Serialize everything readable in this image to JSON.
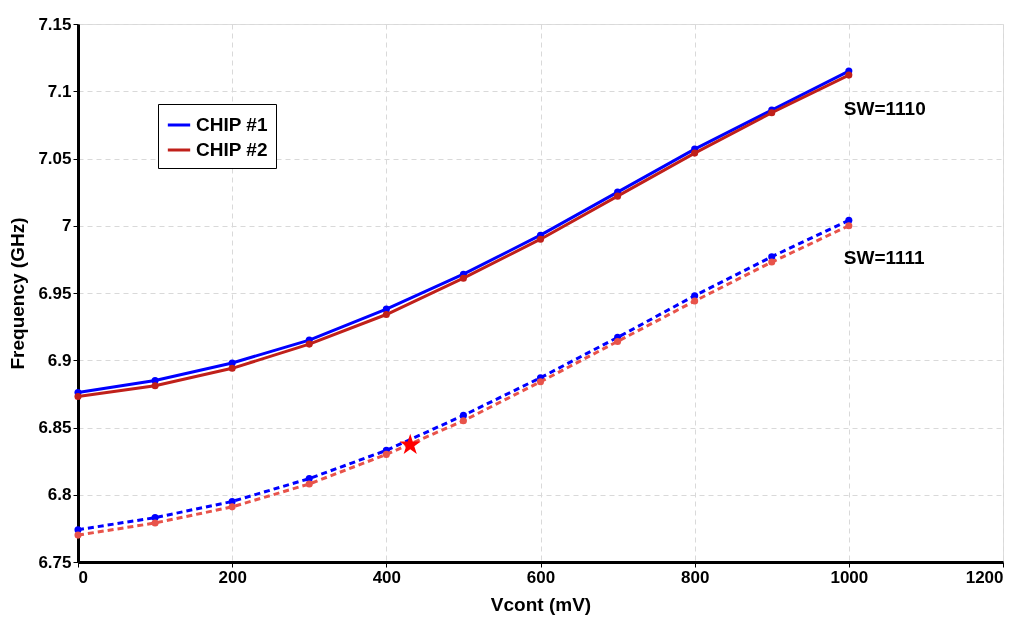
{
  "chart_data": {
    "type": "line",
    "xlabel": "Vcont (mV)",
    "ylabel": "Frequency (GHz)",
    "x": [
      0,
      100,
      200,
      300,
      400,
      500,
      600,
      700,
      800,
      900,
      1000
    ],
    "series": [
      {
        "name": "CHIP #1",
        "color": "#0000ff",
        "line_style": "solid",
        "values": [
          6.876,
          6.885,
          6.898,
          6.915,
          6.938,
          6.964,
          6.993,
          7.025,
          7.057,
          7.086,
          7.115
        ]
      },
      {
        "name": "CHIP #2",
        "color": "#c0201a",
        "line_style": "solid",
        "values": [
          6.873,
          6.881,
          6.894,
          6.912,
          6.934,
          6.961,
          6.99,
          7.022,
          7.054,
          7.084,
          7.112
        ]
      },
      {
        "color": "#0000ff",
        "line_style": "dashed",
        "values": [
          6.774,
          6.783,
          6.795,
          6.812,
          6.833,
          6.859,
          6.887,
          6.917,
          6.948,
          6.977,
          7.004
        ]
      },
      {
        "color": "#e8534a",
        "line_style": "dashed",
        "values": [
          6.77,
          6.779,
          6.791,
          6.808,
          6.83,
          6.855,
          6.884,
          6.914,
          6.944,
          6.973,
          7.0
        ]
      },
      {
        "type": "scatter",
        "marker": "star",
        "color": "#ff0000",
        "x": [
          431
        ],
        "values": [
          6.837
        ]
      }
    ],
    "annotations": [
      "SW=1110",
      "SW=1111"
    ],
    "xlim": [
      0,
      1200
    ],
    "xticks": [
      0,
      200,
      400,
      600,
      800,
      1000,
      1200
    ],
    "ylim": [
      6.75,
      7.15
    ],
    "yticks": [
      6.75,
      6.8,
      6.85,
      6.9,
      6.95,
      7,
      7.05,
      7.1,
      7.15
    ],
    "grid": true,
    "legend": "top left",
    "marker": "circle"
  }
}
